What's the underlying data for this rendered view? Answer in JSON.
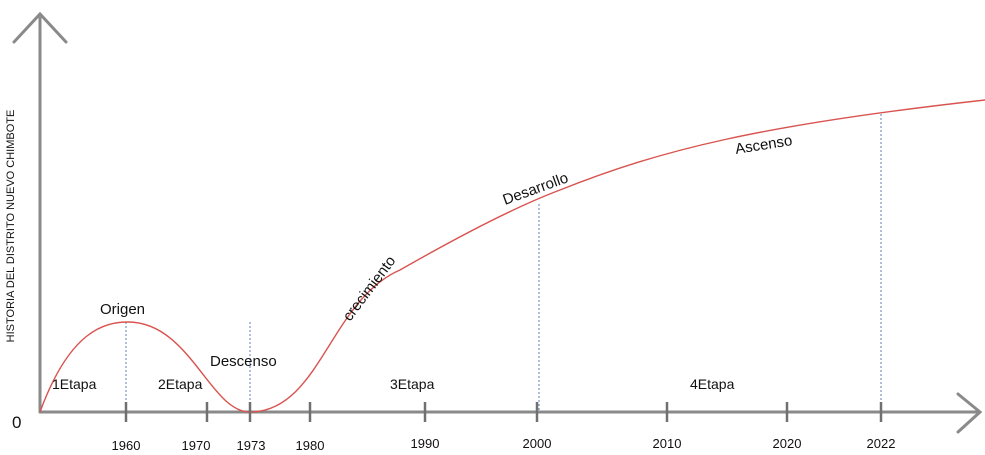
{
  "chart_data": {
    "type": "line",
    "ylabel": "HISTORIA DEL DISTRITO NUEVO CHIMBOTE",
    "origin_label": "0",
    "x_ticks": [
      "1960",
      "1970",
      "1973",
      "1980",
      "1990",
      "2000",
      "2010",
      "2020",
      "2022"
    ],
    "phases": [
      "1Etapa",
      "2Etapa",
      "3Etapa",
      "4Etapa"
    ],
    "annotations": [
      "Origen",
      "Descenso",
      "crecimiento",
      "Desarrollo",
      "Ascenso"
    ],
    "curve_color": "#d9534f"
  }
}
